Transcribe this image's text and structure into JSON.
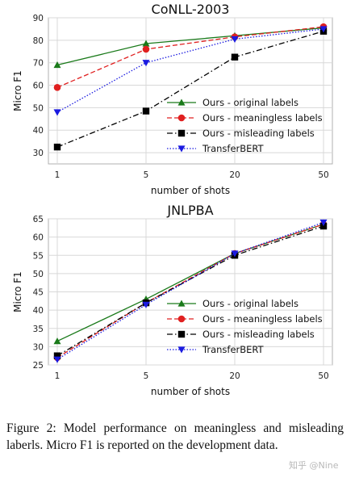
{
  "chart_data": [
    {
      "type": "line",
      "title": "CoNLL-2003",
      "xlabel": "number of shots",
      "ylabel": "Micro F1",
      "categories": [
        "1",
        "5",
        "20",
        "50"
      ],
      "ylim": [
        25,
        90
      ],
      "yticks": [
        30,
        40,
        50,
        60,
        70,
        80,
        90
      ],
      "grid": true,
      "legend_position": "lower-right",
      "series": [
        {
          "name": "Ours - original labels",
          "color": "#1a7a1a",
          "marker": "triangle-up",
          "dash": "solid",
          "values": [
            69,
            78.5,
            82,
            85.5
          ]
        },
        {
          "name": "Ours - meaningless labels",
          "color": "#e02020",
          "marker": "circle",
          "dash": "dashed",
          "values": [
            59,
            76,
            81.5,
            86
          ]
        },
        {
          "name": "Ours - misleading labels",
          "color": "#000000",
          "marker": "square",
          "dash": "dashdot",
          "values": [
            32.5,
            48.5,
            72.5,
            84
          ]
        },
        {
          "name": "TransferBERT",
          "color": "#1a1ae0",
          "marker": "triangle-down",
          "dash": "dotted",
          "values": [
            48,
            70,
            80.5,
            85
          ]
        }
      ]
    },
    {
      "type": "line",
      "title": "JNLPBA",
      "xlabel": "number of shots",
      "ylabel": "Micro F1",
      "categories": [
        "1",
        "5",
        "20",
        "50"
      ],
      "ylim": [
        25,
        65
      ],
      "yticks": [
        25,
        30,
        35,
        40,
        45,
        50,
        55,
        60,
        65
      ],
      "grid": true,
      "legend_position": "lower-right",
      "series": [
        {
          "name": "Ours - original labels",
          "color": "#1a7a1a",
          "marker": "triangle-up",
          "dash": "solid",
          "values": [
            31.5,
            43,
            55.5,
            63.5
          ]
        },
        {
          "name": "Ours - meaningless labels",
          "color": "#e02020",
          "marker": "circle",
          "dash": "dashed",
          "values": [
            27,
            42,
            55.5,
            63.5
          ]
        },
        {
          "name": "Ours - misleading labels",
          "color": "#000000",
          "marker": "square",
          "dash": "dashdot",
          "values": [
            27.5,
            42,
            55,
            63
          ]
        },
        {
          "name": "TransferBERT",
          "color": "#1a1ae0",
          "marker": "triangle-down",
          "dash": "dotted",
          "values": [
            26.5,
            41.5,
            55.5,
            64
          ]
        }
      ]
    }
  ],
  "caption": "Figure 2: Model performance on meaningless and misleading laberls.  Micro F1 is reported on the development data.",
  "watermark": "知乎 @Nine"
}
